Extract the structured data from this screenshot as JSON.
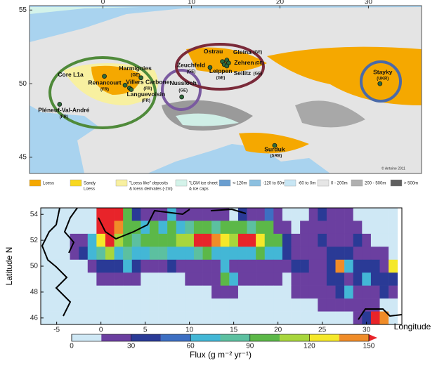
{
  "map": {
    "xlim": [
      -8.3,
      36
    ],
    "ylim": [
      43.9,
      55.3
    ],
    "xticks": [
      0,
      10,
      20,
      30
    ],
    "yticks": [
      45,
      50,
      55
    ],
    "sites": [
      {
        "name": "Core L1a",
        "lon": 0.16,
        "lat": 50.5
      },
      {
        "name": "Harmignies",
        "sub": "(GE)",
        "lon": 4.3,
        "lat": 50.4
      },
      {
        "name": "Renancourt",
        "sub": "(FR)",
        "lon": 2.5,
        "lat": 49.9
      },
      {
        "name": "Villers Carbone",
        "sub": "(FR)",
        "lon": 3.0,
        "lat": 49.7
      },
      {
        "name": "Languevoisin",
        "sub": "(FR)",
        "lon": 3.2,
        "lat": 49.6
      },
      {
        "name": "Pléneuf-Val-André",
        "sub": "(FR)",
        "lon": -4.9,
        "lat": 48.6
      },
      {
        "name": "Nussloch",
        "sub": "(GE)",
        "lon": 8.9,
        "lat": 49.1
      },
      {
        "name": "Zeuchfeld",
        "sub": "(GE)",
        "lon": 12.1,
        "lat": 51.1
      },
      {
        "name": "Ostrau",
        "lon": 13.5,
        "lat": 51.5
      },
      {
        "name": "Leippen",
        "sub": "(GE)",
        "lon": 13.7,
        "lat": 51.3
      },
      {
        "name": "Gleina",
        "sub": "(GE)",
        "lon": 14.0,
        "lat": 51.6
      },
      {
        "name": "Zehren",
        "sub": "(GE)",
        "lon": 14.2,
        "lat": 51.4
      },
      {
        "name": "Seilitz",
        "sub": "(GE)",
        "lon": 14.0,
        "lat": 51.2
      },
      {
        "name": "Stayky",
        "sub": "(UKR)",
        "lon": 31.3,
        "lat": 50.0
      },
      {
        "name": "Surduk",
        "sub": "(SRB)",
        "lon": 19.4,
        "lat": 45.8
      }
    ],
    "credit": "© Antoine 2011",
    "legend": [
      {
        "lines": [
          "Loess"
        ],
        "color": "#f5a800"
      },
      {
        "lines": [
          "Sandy",
          "Loess"
        ],
        "color": "#f8d820"
      },
      {
        "lines": [
          "\"Loess like\" deposits",
          "& loess derivates (-2m)"
        ],
        "color": "#f8f0a0"
      },
      {
        "lines": [
          "\"LGM ice sheet",
          "& ice caps"
        ],
        "color": "#d4f3ea"
      },
      {
        "lines": [
          "<-120m"
        ],
        "color": "#6a9ed0"
      },
      {
        "lines": [
          "-120 to 60m"
        ],
        "color": "#8cc0e0"
      },
      {
        "lines": [
          "-60 to 0m"
        ],
        "color": "#c8e6f4"
      },
      {
        "lines": [
          "0 - 200m"
        ],
        "color": "#e6e6e6"
      },
      {
        "lines": [
          "200 - 500m"
        ],
        "color": "#b0b0b0"
      },
      {
        "lines": [
          "> 500m"
        ],
        "color": "#606060"
      }
    ]
  },
  "chart_data": {
    "type": "heatmap",
    "xlabel": "Longitude",
    "ylabel": "Latitude N",
    "colorbar_label": "Flux (g m⁻² yr⁻¹)",
    "xlim": [
      -6.8,
      34
    ],
    "ylim": [
      45.5,
      54.5
    ],
    "xticks": [
      -5,
      0,
      5,
      10,
      15,
      20,
      25,
      30
    ],
    "yticks": [
      46,
      48,
      50,
      52,
      54
    ],
    "clim": [
      0,
      150
    ],
    "colorbar_ticks": [
      0,
      30,
      60,
      90,
      120,
      150
    ],
    "bin_width": 15,
    "colors": [
      "#cfe8f5",
      "#6b3fa0",
      "#2a3a96",
      "#3d6fc2",
      "#43b7d6",
      "#5cc0a0",
      "#5cb848",
      "#a8d63c",
      "#f5e82a",
      "#f08c28",
      "#e8242a"
    ],
    "x": [
      -7,
      -6,
      -5,
      -4,
      -3,
      -2,
      -1,
      0,
      1,
      2,
      3,
      4,
      5,
      6,
      7,
      8,
      9,
      10,
      11,
      12,
      13,
      14,
      15,
      16,
      17,
      18,
      19,
      20,
      21,
      22,
      23,
      24,
      25,
      26,
      27,
      28,
      29,
      30,
      31,
      32,
      33
    ],
    "y": [
      54,
      53,
      52,
      51,
      50,
      49,
      48,
      47,
      46
    ],
    "values": [
      [
        0,
        0,
        0,
        0,
        0,
        0,
        0,
        150,
        150,
        150,
        90,
        30,
        20,
        20,
        20,
        60,
        20,
        20,
        20,
        20,
        20,
        20,
        0,
        40,
        20,
        20,
        50,
        20,
        0,
        0,
        0,
        20,
        40,
        20,
        20,
        20,
        0,
        0,
        0,
        0,
        0
      ],
      [
        0,
        0,
        0,
        0,
        0,
        0,
        0,
        150,
        150,
        140,
        100,
        90,
        60,
        90,
        70,
        90,
        70,
        80,
        90,
        90,
        80,
        90,
        90,
        90,
        80,
        100,
        90,
        20,
        20,
        0,
        20,
        20,
        20,
        20,
        20,
        20,
        20,
        0,
        0,
        0,
        0
      ],
      [
        0,
        0,
        0,
        0,
        20,
        20,
        70,
        130,
        150,
        110,
        100,
        80,
        100,
        90,
        90,
        100,
        110,
        110,
        150,
        150,
        140,
        130,
        110,
        150,
        150,
        130,
        100,
        90,
        40,
        20,
        20,
        20,
        30,
        20,
        20,
        20,
        30,
        20,
        0,
        0,
        0
      ],
      [
        0,
        0,
        0,
        0,
        20,
        40,
        70,
        80,
        110,
        70,
        80,
        70,
        60,
        80,
        80,
        70,
        60,
        70,
        80,
        90,
        60,
        60,
        70,
        60,
        60,
        90,
        70,
        60,
        30,
        20,
        20,
        20,
        20,
        40,
        30,
        30,
        20,
        20,
        20,
        20,
        0
      ],
      [
        0,
        0,
        0,
        0,
        0,
        0,
        20,
        30,
        40,
        40,
        60,
        30,
        20,
        20,
        20,
        40,
        20,
        20,
        20,
        20,
        20,
        70,
        20,
        20,
        20,
        20,
        20,
        20,
        20,
        40,
        30,
        20,
        20,
        30,
        140,
        70,
        40,
        40,
        30,
        20,
        120
      ],
      [
        0,
        0,
        0,
        0,
        0,
        0,
        0,
        20,
        20,
        20,
        20,
        20,
        0,
        0,
        0,
        0,
        0,
        20,
        20,
        20,
        20,
        100,
        70,
        20,
        20,
        20,
        20,
        20,
        0,
        20,
        20,
        20,
        20,
        30,
        40,
        20,
        40,
        60,
        30,
        30,
        40
      ],
      [
        0,
        0,
        0,
        0,
        0,
        0,
        0,
        0,
        0,
        0,
        0,
        0,
        0,
        0,
        0,
        0,
        0,
        0,
        0,
        0,
        20,
        20,
        20,
        0,
        0,
        0,
        0,
        0,
        0,
        20,
        20,
        20,
        20,
        20,
        40,
        60,
        20,
        20,
        20,
        40,
        20
      ],
      [
        0,
        0,
        0,
        0,
        0,
        0,
        0,
        0,
        0,
        0,
        0,
        0,
        0,
        0,
        0,
        0,
        0,
        0,
        0,
        0,
        0,
        0,
        0,
        0,
        0,
        0,
        0,
        0,
        0,
        0,
        0,
        0,
        20,
        20,
        20,
        20,
        20,
        20,
        20,
        0,
        0
      ],
      [
        0,
        0,
        0,
        0,
        0,
        0,
        0,
        0,
        0,
        0,
        0,
        0,
        0,
        0,
        0,
        0,
        0,
        0,
        0,
        0,
        0,
        0,
        0,
        0,
        0,
        0,
        0,
        0,
        0,
        0,
        0,
        0,
        0,
        0,
        0,
        0,
        20,
        30,
        150,
        140,
        0
      ]
    ]
  }
}
